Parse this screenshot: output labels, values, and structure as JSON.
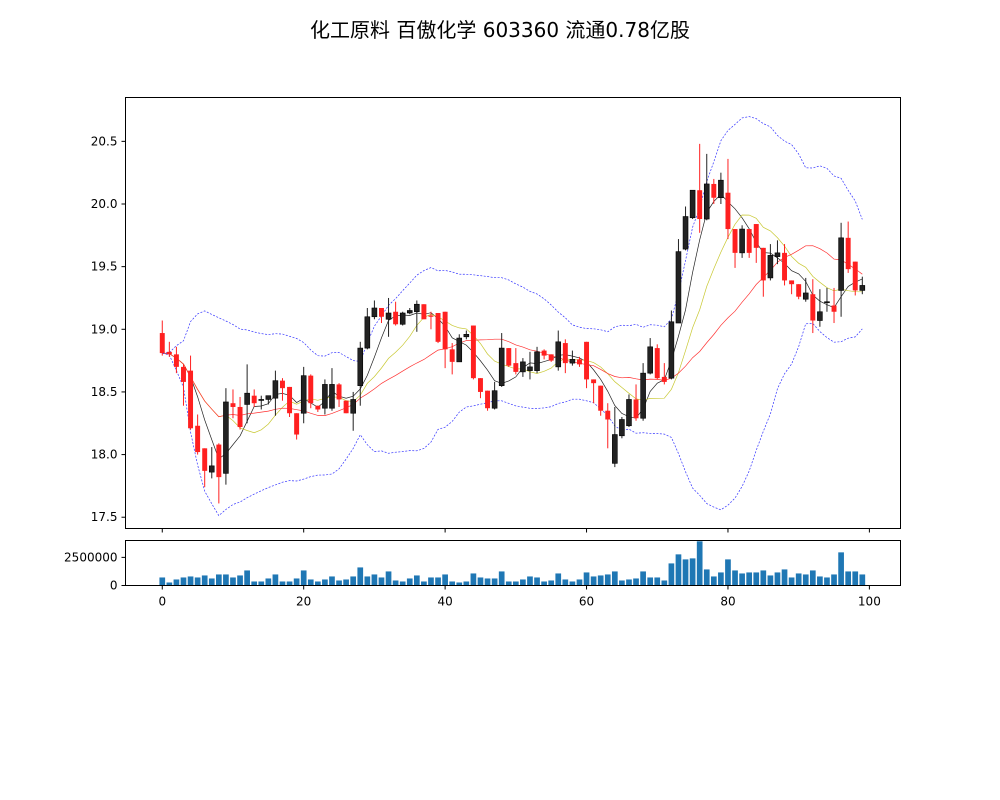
{
  "chart_data": [
    {
      "type": "candlestick",
      "title": "化工原料 百傲化学 603360 流通0.78亿股",
      "ylim": [
        17.41,
        20.85
      ],
      "xlim": [
        -5.2,
        104.4
      ],
      "yticks": [
        "17.5",
        "18.0",
        "18.5",
        "19.0",
        "19.5",
        "20.0",
        "20.5"
      ],
      "up_color": "#222222",
      "down_color": "#ff2020",
      "overlays": [
        {
          "kind": "moving-average",
          "period": 5,
          "color": "#222222"
        },
        {
          "kind": "moving-average",
          "period": 10,
          "color": "#c8c832"
        },
        {
          "kind": "moving-average",
          "period": 20,
          "color": "#ff3030"
        },
        {
          "kind": "bollinger",
          "period": 20,
          "k": 2,
          "color": "#3333ff",
          "style": "dashed"
        }
      ],
      "ohlc_order": [
        "open",
        "high",
        "low",
        "close"
      ],
      "ohlc": [
        [
          18.97,
          19.07,
          18.79,
          18.81
        ],
        [
          18.82,
          18.9,
          18.78,
          18.8
        ],
        [
          18.8,
          18.86,
          18.65,
          18.7
        ],
        [
          18.7,
          18.72,
          18.39,
          18.58
        ],
        [
          18.67,
          18.79,
          18.2,
          18.21
        ],
        [
          18.23,
          18.32,
          18.0,
          18.02
        ],
        [
          18.05,
          18.05,
          17.74,
          17.87
        ],
        [
          17.86,
          18.06,
          17.81,
          17.91
        ],
        [
          18.08,
          18.09,
          17.61,
          17.82
        ],
        [
          17.85,
          18.53,
          17.76,
          18.42
        ],
        [
          18.41,
          18.52,
          18.29,
          18.38
        ],
        [
          18.38,
          18.46,
          18.2,
          18.22
        ],
        [
          18.4,
          18.72,
          18.25,
          18.49
        ],
        [
          18.47,
          18.52,
          18.38,
          18.41
        ],
        [
          18.44,
          18.47,
          18.36,
          18.44
        ],
        [
          18.44,
          18.47,
          18.4,
          18.47
        ],
        [
          18.45,
          18.67,
          18.31,
          18.59
        ],
        [
          18.59,
          18.61,
          18.43,
          18.53
        ],
        [
          18.54,
          18.54,
          18.3,
          18.33
        ],
        [
          18.33,
          18.33,
          18.12,
          18.16
        ],
        [
          18.33,
          18.7,
          18.25,
          18.63
        ],
        [
          18.63,
          18.64,
          18.37,
          18.41
        ],
        [
          18.39,
          18.39,
          18.34,
          18.36
        ],
        [
          18.37,
          18.6,
          18.32,
          18.56
        ],
        [
          18.37,
          18.69,
          18.35,
          18.56
        ],
        [
          18.56,
          18.57,
          18.38,
          18.44
        ],
        [
          18.43,
          18.43,
          18.33,
          18.33
        ],
        [
          18.33,
          18.5,
          18.19,
          18.44
        ],
        [
          18.55,
          18.9,
          18.39,
          18.85
        ],
        [
          18.85,
          19.17,
          18.84,
          19.1
        ],
        [
          19.1,
          19.23,
          19.08,
          19.17
        ],
        [
          19.17,
          19.17,
          19.05,
          19.1
        ],
        [
          19.08,
          19.25,
          18.94,
          19.13
        ],
        [
          19.14,
          19.22,
          19.03,
          19.04
        ],
        [
          19.04,
          19.14,
          19.03,
          19.13
        ],
        [
          19.13,
          19.17,
          19.12,
          19.15
        ],
        [
          19.14,
          19.23,
          18.98,
          19.2
        ],
        [
          19.2,
          19.2,
          19.08,
          19.08
        ],
        [
          19.11,
          19.14,
          19.0,
          19.1
        ],
        [
          19.13,
          19.13,
          18.89,
          18.9
        ],
        [
          19.14,
          19.14,
          18.69,
          18.84
        ],
        [
          18.84,
          18.89,
          18.64,
          18.74
        ],
        [
          18.74,
          18.96,
          18.74,
          18.93
        ],
        [
          18.94,
          18.99,
          18.92,
          18.96
        ],
        [
          19.03,
          19.03,
          18.6,
          18.61
        ],
        [
          18.61,
          18.61,
          18.45,
          18.5
        ],
        [
          18.51,
          18.51,
          18.35,
          18.37
        ],
        [
          18.37,
          18.58,
          18.36,
          18.51
        ],
        [
          18.55,
          18.97,
          18.54,
          18.85
        ],
        [
          18.85,
          18.85,
          18.7,
          18.71
        ],
        [
          18.73,
          18.85,
          18.64,
          18.66
        ],
        [
          18.66,
          18.77,
          18.62,
          18.74
        ],
        [
          18.67,
          18.82,
          18.6,
          18.7
        ],
        [
          18.67,
          18.86,
          18.65,
          18.82
        ],
        [
          18.83,
          18.84,
          18.76,
          18.79
        ],
        [
          18.8,
          18.8,
          18.74,
          18.75
        ],
        [
          18.7,
          18.99,
          18.67,
          18.9
        ],
        [
          18.89,
          18.92,
          18.65,
          18.73
        ],
        [
          18.73,
          18.83,
          18.71,
          18.76
        ],
        [
          18.76,
          18.78,
          18.7,
          18.72
        ],
        [
          18.9,
          18.9,
          18.53,
          18.6
        ],
        [
          18.6,
          18.6,
          18.41,
          18.57
        ],
        [
          18.55,
          18.55,
          18.31,
          18.35
        ],
        [
          18.35,
          18.41,
          18.05,
          18.28
        ],
        [
          17.93,
          18.38,
          17.9,
          18.16
        ],
        [
          18.15,
          18.3,
          18.13,
          18.28
        ],
        [
          18.23,
          18.48,
          18.22,
          18.44
        ],
        [
          18.44,
          18.56,
          18.27,
          18.29
        ],
        [
          18.29,
          18.73,
          18.27,
          18.65
        ],
        [
          18.65,
          18.93,
          18.64,
          18.86
        ],
        [
          18.85,
          18.88,
          18.6,
          18.61
        ],
        [
          18.62,
          18.73,
          18.56,
          18.58
        ],
        [
          18.61,
          19.15,
          18.6,
          19.06
        ],
        [
          19.05,
          19.72,
          19.05,
          19.62
        ],
        [
          19.64,
          19.98,
          19.63,
          19.9
        ],
        [
          19.89,
          20.11,
          19.88,
          20.11
        ],
        [
          20.11,
          20.48,
          19.77,
          19.88
        ],
        [
          19.88,
          20.4,
          19.87,
          20.16
        ],
        [
          20.16,
          20.2,
          20.0,
          20.05
        ],
        [
          20.05,
          20.25,
          20.0,
          20.19
        ],
        [
          20.09,
          20.36,
          19.72,
          19.8
        ],
        [
          19.8,
          19.8,
          19.49,
          19.61
        ],
        [
          19.61,
          19.83,
          19.57,
          19.8
        ],
        [
          19.8,
          19.8,
          19.57,
          19.61
        ],
        [
          19.84,
          19.84,
          19.53,
          19.65
        ],
        [
          19.65,
          19.65,
          19.26,
          19.39
        ],
        [
          19.41,
          19.68,
          19.39,
          19.59
        ],
        [
          19.58,
          19.71,
          19.52,
          19.61
        ],
        [
          19.61,
          19.68,
          19.35,
          19.39
        ],
        [
          19.39,
          19.39,
          19.28,
          19.36
        ],
        [
          19.36,
          19.36,
          19.24,
          19.26
        ],
        [
          19.24,
          19.41,
          19.22,
          19.29
        ],
        [
          19.28,
          19.4,
          18.97,
          19.07
        ],
        [
          19.07,
          19.32,
          19.02,
          19.14
        ],
        [
          19.22,
          19.33,
          19.14,
          19.22
        ],
        [
          19.19,
          19.33,
          19.05,
          19.14
        ],
        [
          19.31,
          19.85,
          19.1,
          19.73
        ],
        [
          19.73,
          19.86,
          19.45,
          19.48
        ],
        [
          19.54,
          19.54,
          19.27,
          19.31
        ],
        [
          19.31,
          19.42,
          19.28,
          19.35
        ]
      ]
    },
    {
      "type": "bar",
      "ylim": [
        0,
        4000000
      ],
      "xlim": [
        -5.2,
        104.4
      ],
      "yticks": [
        "0",
        "2500000"
      ],
      "xticks": [
        "0",
        "20",
        "40",
        "60",
        "80",
        "100"
      ],
      "color": "#1f77b4",
      "values": [
        714000,
        268000,
        536000,
        714000,
        804000,
        714000,
        893000,
        625000,
        982000,
        982000,
        714000,
        893000,
        1339000,
        357000,
        357000,
        625000,
        982000,
        357000,
        357000,
        625000,
        1339000,
        536000,
        357000,
        536000,
        804000,
        446000,
        536000,
        804000,
        1607000,
        804000,
        982000,
        714000,
        1250000,
        446000,
        357000,
        625000,
        893000,
        357000,
        714000,
        714000,
        982000,
        357000,
        268000,
        357000,
        1071000,
        714000,
        625000,
        625000,
        1250000,
        357000,
        357000,
        536000,
        804000,
        714000,
        357000,
        446000,
        1071000,
        536000,
        357000,
        536000,
        1161000,
        804000,
        893000,
        982000,
        1250000,
        446000,
        536000,
        625000,
        1250000,
        714000,
        714000,
        446000,
        1964000,
        2768000,
        2321000,
        2411000,
        3929000,
        1429000,
        804000,
        1161000,
        2321000,
        1339000,
        1071000,
        1161000,
        1161000,
        1339000,
        893000,
        1161000,
        1429000,
        714000,
        1071000,
        982000,
        1339000,
        804000,
        714000,
        982000,
        2946000,
        1250000,
        1250000,
        982000
      ]
    }
  ]
}
